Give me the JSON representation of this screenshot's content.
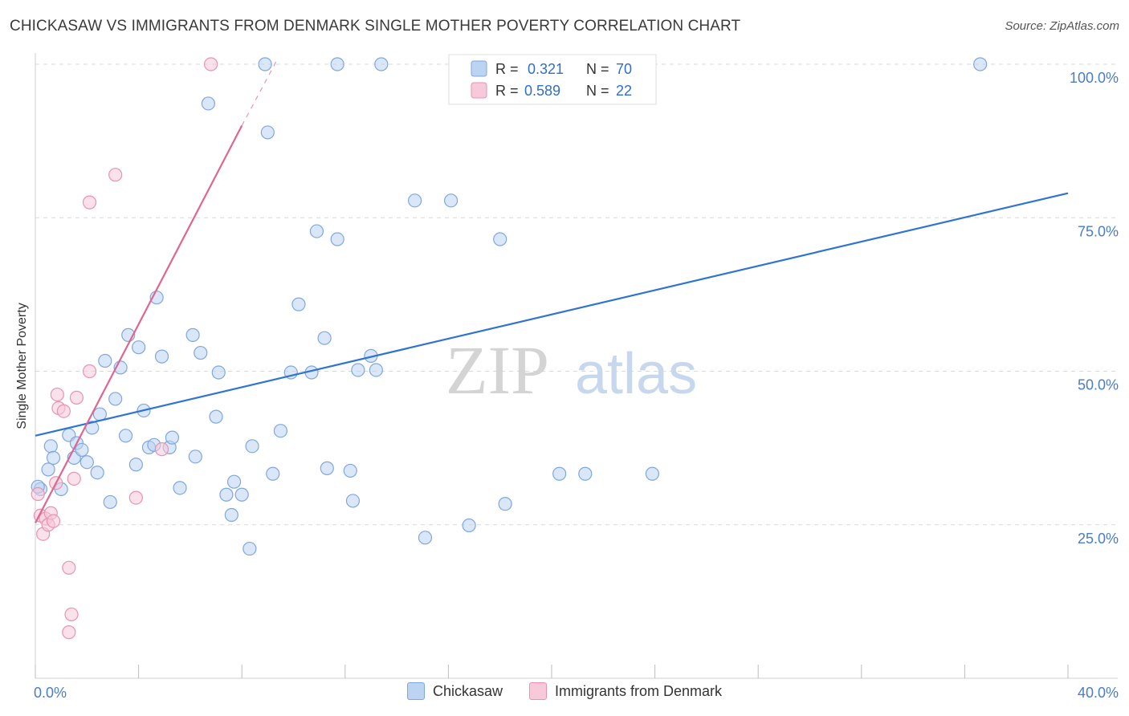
{
  "title": "CHICKASAW VS IMMIGRANTS FROM DENMARK SINGLE MOTHER POVERTY CORRELATION CHART",
  "source": "Source: ZipAtlas.com",
  "watermark": {
    "zip": "ZIP",
    "atlas": "atlas"
  },
  "colors": {
    "blue_fill": "#bcd3f2",
    "blue_stroke": "#7ea7e0",
    "blue_line": "#2f74d0",
    "pink_fill": "#f8c9d8",
    "pink_stroke": "#e993b0",
    "pink_line": "#e0668f",
    "axis_text": "#4a7cc7",
    "grid": "#d9d9d9"
  },
  "legend_top": [
    {
      "r_label": "R =",
      "r_value": "0.321",
      "n_label": "N =",
      "n_value": "70"
    },
    {
      "r_label": "R =",
      "r_value": "0.589",
      "n_label": "N =",
      "n_value": "22"
    }
  ],
  "legend_bottom": [
    {
      "label": "Chickasaw"
    },
    {
      "label": "Immigrants from Denmark"
    }
  ],
  "chart_data": {
    "type": "scatter",
    "title": "CHICKASAW VS IMMIGRANTS FROM DENMARK SINGLE MOTHER POVERTY CORRELATION CHART",
    "xlabel": "",
    "ylabel": "Single Mother Poverty",
    "xlim": [
      0,
      40
    ],
    "ylim": [
      0,
      100
    ],
    "x_tick_labels": [
      {
        "value": 0,
        "label": "0.0%"
      },
      {
        "value": 40,
        "label": "40.0%"
      }
    ],
    "y_tick_labels": [
      {
        "value": 25,
        "label": "25.0%"
      },
      {
        "value": 50,
        "label": "50.0%"
      },
      {
        "value": 75,
        "label": "75.0%"
      },
      {
        "value": 100,
        "label": "100.0%"
      }
    ],
    "series": [
      {
        "name": "Chickasaw",
        "color": "blue",
        "trend": {
          "x0": 0,
          "y0": 39.5,
          "x1": 40,
          "y1": 79.0,
          "dashed_extension": false
        },
        "points": [
          [
            0.2,
            30.8
          ],
          [
            0.5,
            34.0
          ],
          [
            0.6,
            37.8
          ],
          [
            0.7,
            35.9
          ],
          [
            1.0,
            30.8
          ],
          [
            1.3,
            39.6
          ],
          [
            1.5,
            35.9
          ],
          [
            1.6,
            38.3
          ],
          [
            1.8,
            37.2
          ],
          [
            2.0,
            35.2
          ],
          [
            2.2,
            40.8
          ],
          [
            2.4,
            33.5
          ],
          [
            2.5,
            43.0
          ],
          [
            2.7,
            51.7
          ],
          [
            2.9,
            28.7
          ],
          [
            3.1,
            45.5
          ],
          [
            3.3,
            50.6
          ],
          [
            3.5,
            39.5
          ],
          [
            3.6,
            55.9
          ],
          [
            3.9,
            34.8
          ],
          [
            4.0,
            53.9
          ],
          [
            4.2,
            43.6
          ],
          [
            4.4,
            37.6
          ],
          [
            4.6,
            38.0
          ],
          [
            4.7,
            62.0
          ],
          [
            4.9,
            52.4
          ],
          [
            5.2,
            37.6
          ],
          [
            5.3,
            39.2
          ],
          [
            5.6,
            31.0
          ],
          [
            6.1,
            55.9
          ],
          [
            6.2,
            36.1
          ],
          [
            6.4,
            53.0
          ],
          [
            6.7,
            93.6
          ],
          [
            7.0,
            42.6
          ],
          [
            7.1,
            49.8
          ],
          [
            7.4,
            29.9
          ],
          [
            7.6,
            26.6
          ],
          [
            7.7,
            32.0
          ],
          [
            8.0,
            29.9
          ],
          [
            8.4,
            37.8
          ],
          [
            8.3,
            21.1
          ],
          [
            8.9,
            100.0
          ],
          [
            9.0,
            88.9
          ],
          [
            9.2,
            33.3
          ],
          [
            9.5,
            40.3
          ],
          [
            9.9,
            49.8
          ],
          [
            10.2,
            60.9
          ],
          [
            10.7,
            49.8
          ],
          [
            10.9,
            72.8
          ],
          [
            11.2,
            55.4
          ],
          [
            11.3,
            34.2
          ],
          [
            11.7,
            71.5
          ],
          [
            11.7,
            100.0
          ],
          [
            12.2,
            33.8
          ],
          [
            12.3,
            28.9
          ],
          [
            12.5,
            50.2
          ],
          [
            13.0,
            52.5
          ],
          [
            13.2,
            50.2
          ],
          [
            13.4,
            100.0
          ],
          [
            14.7,
            77.8
          ],
          [
            15.1,
            22.9
          ],
          [
            16.1,
            77.8
          ],
          [
            16.8,
            24.9
          ],
          [
            18.0,
            71.5
          ],
          [
            18.2,
            28.4
          ],
          [
            20.3,
            33.3
          ],
          [
            21.3,
            33.3
          ],
          [
            23.9,
            33.3
          ],
          [
            36.6,
            100.0
          ],
          [
            0.1,
            31.2
          ]
        ]
      },
      {
        "name": "Immigrants from Denmark",
        "color": "pink",
        "trend": {
          "x0": 0,
          "y0": 25.3,
          "x1": 8.0,
          "y1": 90.0,
          "dash_x1": 9.4,
          "dash_y1": 101.0
        },
        "points": [
          [
            0.1,
            30.0
          ],
          [
            0.2,
            26.5
          ],
          [
            0.3,
            23.5
          ],
          [
            0.4,
            26.0
          ],
          [
            0.5,
            25.0
          ],
          [
            0.6,
            26.9
          ],
          [
            0.7,
            25.6
          ],
          [
            0.8,
            31.8
          ],
          [
            0.85,
            46.2
          ],
          [
            0.9,
            44.0
          ],
          [
            1.1,
            43.5
          ],
          [
            1.3,
            18.0
          ],
          [
            1.4,
            10.4
          ],
          [
            1.3,
            7.5
          ],
          [
            1.5,
            32.5
          ],
          [
            1.6,
            45.7
          ],
          [
            2.1,
            50.0
          ],
          [
            2.1,
            77.5
          ],
          [
            3.1,
            82.0
          ],
          [
            3.9,
            29.4
          ],
          [
            4.9,
            37.3
          ],
          [
            6.8,
            100.0
          ]
        ]
      }
    ]
  }
}
